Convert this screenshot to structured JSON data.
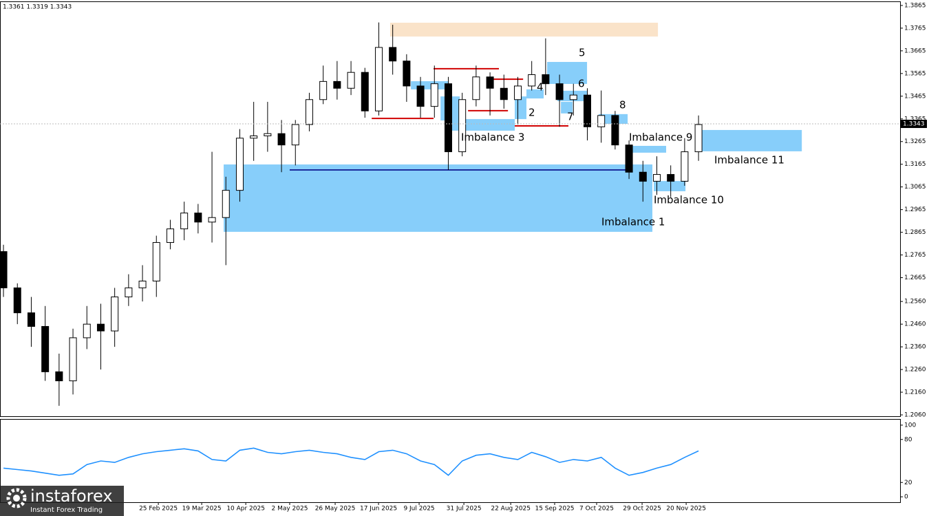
{
  "chart_data": [
    {
      "type": "candlestick",
      "header": "1.3361 1.3319 1.3343",
      "open": [
        1.278,
        1.262,
        1.251,
        1.245,
        1.225,
        1.221,
        1.24,
        1.246,
        1.243,
        1.258,
        1.262,
        1.265,
        1.282,
        1.288,
        1.295,
        1.291,
        1.293,
        1.305,
        1.328,
        1.329,
        1.33,
        1.325,
        1.334,
        1.345,
        1.353,
        1.35,
        1.357,
        1.34,
        1.368,
        1.362,
        1.351,
        1.342,
        1.352,
        1.322,
        1.345,
        1.355,
        1.35,
        1.345,
        1.351,
        1.356,
        1.352,
        1.345,
        1.347,
        1.333,
        1.338,
        1.325,
        1.313,
        1.309,
        1.312,
        1.309,
        1.322
      ],
      "high": [
        1.281,
        1.264,
        1.258,
        1.254,
        1.233,
        1.244,
        1.254,
        1.255,
        1.262,
        1.268,
        1.272,
        1.285,
        1.292,
        1.3,
        1.299,
        1.322,
        1.311,
        1.332,
        1.344,
        1.344,
        1.336,
        1.336,
        1.348,
        1.36,
        1.362,
        1.362,
        1.359,
        1.379,
        1.378,
        1.365,
        1.355,
        1.36,
        1.355,
        1.348,
        1.36,
        1.357,
        1.356,
        1.355,
        1.362,
        1.372,
        1.356,
        1.352,
        1.35,
        1.349,
        1.34,
        1.327,
        1.318,
        1.32,
        1.316,
        1.328,
        1.338
      ],
      "low": [
        1.258,
        1.246,
        1.236,
        1.221,
        1.21,
        1.215,
        1.235,
        1.226,
        1.236,
        1.254,
        1.256,
        1.258,
        1.279,
        1.283,
        1.286,
        1.282,
        1.272,
        1.3,
        1.318,
        1.322,
        1.313,
        1.316,
        1.331,
        1.343,
        1.345,
        1.347,
        1.337,
        1.338,
        1.356,
        1.344,
        1.337,
        1.337,
        1.314,
        1.32,
        1.342,
        1.338,
        1.341,
        1.334,
        1.349,
        1.347,
        1.333,
        1.338,
        1.327,
        1.326,
        1.323,
        1.31,
        1.3,
        1.303,
        1.302,
        1.307,
        1.318
      ],
      "close": [
        1.262,
        1.251,
        1.245,
        1.225,
        1.221,
        1.24,
        1.246,
        1.243,
        1.258,
        1.262,
        1.265,
        1.282,
        1.288,
        1.295,
        1.291,
        1.293,
        1.305,
        1.328,
        1.329,
        1.33,
        1.325,
        1.334,
        1.345,
        1.353,
        1.35,
        1.357,
        1.34,
        1.368,
        1.362,
        1.351,
        1.342,
        1.352,
        1.322,
        1.345,
        1.355,
        1.35,
        1.345,
        1.351,
        1.356,
        1.352,
        1.345,
        1.347,
        1.333,
        1.338,
        1.325,
        1.313,
        1.309,
        1.312,
        1.309,
        1.322,
        1.334
      ],
      "up_color": "#ffffff",
      "down_color": "#000000",
      "wick_color": "#000000",
      "current_price": 1.3343,
      "xlim": [
        -0.25,
        64.5
      ],
      "xticks": [
        {
          "value": 11.14,
          "label": "25 Feb 2025"
        },
        {
          "value": 14.26,
          "label": "19 Mar 2025"
        },
        {
          "value": 17.43,
          "label": "10 Apr 2025"
        },
        {
          "value": 20.59,
          "label": "2 May 2025"
        },
        {
          "value": 23.86,
          "label": "26 May 2025"
        },
        {
          "value": 26.98,
          "label": "17 Jun 2025"
        },
        {
          "value": 29.9,
          "label": "9 Jul 2025"
        },
        {
          "value": 33.12,
          "label": "31 Jul 2025"
        },
        {
          "value": 36.49,
          "label": "22 Aug 2025"
        },
        {
          "value": 39.65,
          "label": "15 Sep 2025"
        },
        {
          "value": 42.67,
          "label": "7 Oct 2025"
        },
        {
          "value": 45.94,
          "label": "29 Oct 2025"
        },
        {
          "value": 49.11,
          "label": "20 Nov 2025"
        }
      ],
      "ylim": [
        1.2054,
        1.3883
      ],
      "yticks": [
        1.3865,
        1.3765,
        1.3665,
        1.3565,
        1.3465,
        1.3365,
        1.3265,
        1.3165,
        1.3065,
        1.2965,
        1.2865,
        1.2765,
        1.2665,
        {
          "value": 1.256,
          "label": "1.2560"
        },
        {
          "value": 1.246,
          "label": "1.2460"
        },
        {
          "value": 1.236,
          "label": "1.2360"
        },
        {
          "value": 1.226,
          "label": "1.2260"
        },
        {
          "value": 1.216,
          "label": "1.2160"
        },
        {
          "value": 1.206,
          "label": "1.2060"
        }
      ],
      "zones": [
        {
          "color": "#fae3c9",
          "x": [
            27.82,
            47.08
          ],
          "y": [
            1.3728,
            1.3789
          ]
        },
        {
          "label": "Imbalance 1",
          "color": "#87cefa",
          "x": [
            15.84,
            46.68
          ],
          "y": [
            1.2867,
            1.3164
          ]
        },
        {
          "color": "#87cefa",
          "x": [
            29.31,
            32.03
          ],
          "y": [
            1.3495,
            1.3531
          ]
        },
        {
          "color": "#87cefa",
          "x": [
            31.44,
            32.82
          ],
          "y": [
            1.3358,
            1.3464
          ]
        },
        {
          "label": "Imbalance 3",
          "color": "#87cefa",
          "x": [
            32.03,
            36.78
          ],
          "y": [
            1.3313,
            1.3364
          ]
        },
        {
          "label": "2",
          "color": "#87cefa",
          "x": [
            36.78,
            37.62
          ],
          "y": [
            1.3364,
            1.3464
          ]
        },
        {
          "label": "4",
          "color": "#87cefa",
          "x": [
            37.62,
            38.86
          ],
          "y": [
            1.3455,
            1.3495
          ]
        },
        {
          "label": "5",
          "color": "#87cefa",
          "x": [
            39.11,
            41.98
          ],
          "y": [
            1.3519,
            1.3616
          ]
        },
        {
          "label": "6",
          "color": "#87cefa",
          "x": [
            39.85,
            41.98
          ],
          "y": [
            1.3443,
            1.3489
          ]
        },
        {
          "label": "7",
          "color": "#87cefa",
          "x": [
            40.1,
            40.94
          ],
          "y": [
            1.3389,
            1.344
          ]
        },
        {
          "label": "8",
          "color": "#87cefa",
          "x": [
            42.82,
            44.9
          ],
          "y": [
            1.3343,
            1.3386
          ]
        },
        {
          "label": "Imbalance 9",
          "color": "#87cefa",
          "x": [
            44.8,
            47.67
          ],
          "y": [
            1.3216,
            1.3246
          ]
        },
        {
          "label": "Imbalance 10",
          "color": "#87cefa",
          "x": [
            46.78,
            49.06
          ],
          "y": [
            1.3046,
            1.3091
          ]
        },
        {
          "label": "Imbalance 11",
          "color": "#87cefa",
          "x": [
            49.75,
            57.43
          ],
          "y": [
            1.3222,
            1.3316
          ]
        }
      ],
      "levels": [
        {
          "color": "#d00000",
          "y": 1.3367,
          "x": [
            26.49,
            30.94
          ]
        },
        {
          "color": "#d00000",
          "y": 1.3586,
          "x": [
            30.94,
            35.64
          ]
        },
        {
          "color": "#d00000",
          "y": 1.3401,
          "x": [
            33.42,
            36.29
          ]
        },
        {
          "color": "#d00000",
          "y": 1.354,
          "x": [
            35.15,
            37.38
          ]
        },
        {
          "color": "#d00000",
          "y": 1.3334,
          "x": [
            36.78,
            40.64
          ]
        },
        {
          "color": "#1a2a9a",
          "y": 1.314,
          "x": [
            20.59,
            44.8
          ]
        }
      ]
    },
    {
      "type": "line",
      "series": [
        {
          "color": "#1e90ff",
          "values": [
            40,
            38,
            36,
            33,
            30,
            32,
            45,
            50,
            48,
            55,
            60,
            63,
            65,
            67,
            64,
            52,
            50,
            65,
            68,
            62,
            60,
            63,
            65,
            62,
            60,
            55,
            52,
            63,
            65,
            60,
            50,
            45,
            30,
            50,
            58,
            60,
            55,
            52,
            62,
            56,
            48,
            52,
            50,
            55,
            40,
            30,
            34,
            40,
            45,
            55,
            64
          ]
        }
      ],
      "xlim": [
        -0.25,
        64.5
      ],
      "ylim": [
        -7.6,
        107.6
      ],
      "yticks": [
        100,
        80,
        20,
        0
      ]
    }
  ],
  "watermark": {
    "brand": "instaforex",
    "tagline": "Instant Forex Trading"
  }
}
